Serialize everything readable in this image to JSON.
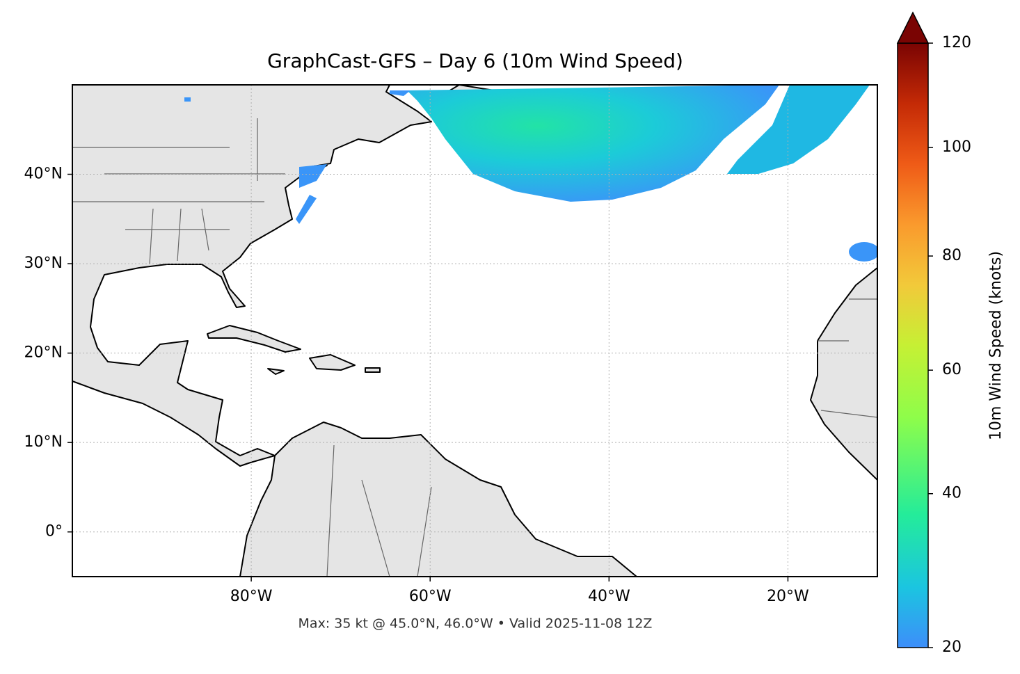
{
  "chart_data": {
    "type": "map",
    "title": "GraphCast-GFS – Day 6 (10m Wind Speed)",
    "footnote": "Max: 35 kt @ 45.0°N, 46.0°W • Valid 2025-11-08 12Z",
    "xlim": [
      -100,
      -10
    ],
    "ylim": [
      -5,
      50
    ],
    "xticks": [
      {
        "value": -80,
        "label": "80°W"
      },
      {
        "value": -60,
        "label": "60°W"
      },
      {
        "value": -40,
        "label": "40°W"
      },
      {
        "value": -20,
        "label": "20°W"
      }
    ],
    "yticks": [
      {
        "value": 0,
        "label": "0°"
      },
      {
        "value": 10,
        "label": "10°N"
      },
      {
        "value": 20,
        "label": "20°N"
      },
      {
        "value": 30,
        "label": "30°N"
      },
      {
        "value": 40,
        "label": "40°N"
      }
    ],
    "grid": true,
    "colorbar_label": "10m Wind Speed (knots)",
    "colorbar_lim": [
      20,
      120
    ],
    "colorbar_ticks": [
      20,
      40,
      60,
      80,
      100,
      120
    ],
    "colorbar_extend": "max"
  }
}
